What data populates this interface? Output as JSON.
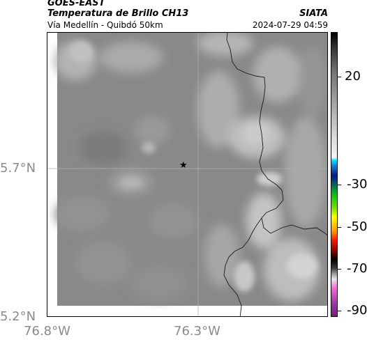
{
  "header": {
    "satellite": "GOES-EAST",
    "product": "Temperatura de Brillo CH13",
    "source": "SIATA",
    "location": "Vía Medellín - Quibdó 50km",
    "timestamp": "2024-07-29 04:59"
  },
  "axes": {
    "lat_ticks": [
      "5.7°N",
      "5.2°N"
    ],
    "lon_ticks": [
      "76.8°W",
      "76.3°W"
    ]
  },
  "colorbar": {
    "ticks": [
      "20",
      "-30",
      "-50",
      "-70",
      "-90"
    ]
  },
  "marker": {
    "symbol": "★",
    "color": "#000000"
  },
  "colors": {
    "background": "#898989",
    "border_line": "#1a1a1a",
    "grid_line": "#b0b0b0"
  }
}
